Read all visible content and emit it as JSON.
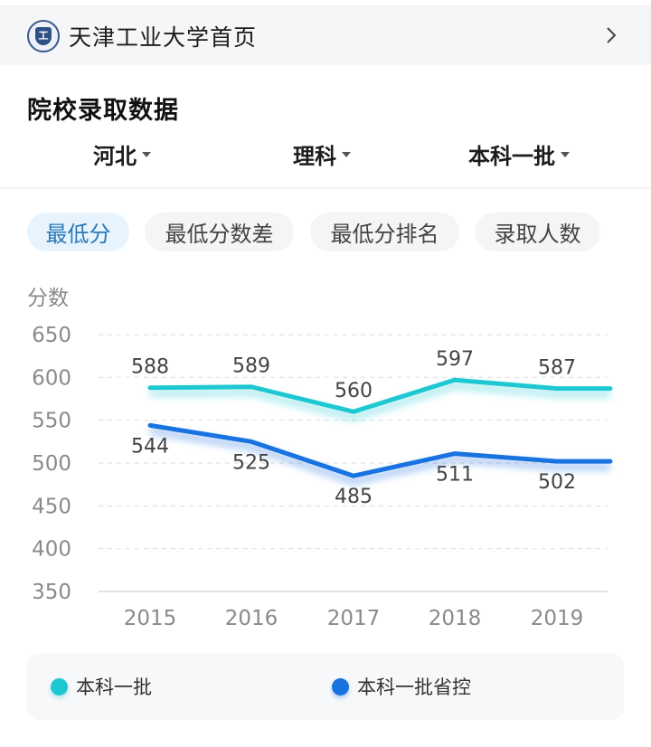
{
  "top_link": {
    "logo_icon": "university-seal-icon",
    "logo_glyph": "工",
    "title": "天津工业大学首页",
    "chevron_icon": "chevron-right-icon"
  },
  "section": {
    "title": "院校录取数据"
  },
  "filters": [
    {
      "label": "河北",
      "icon": "caret-down-icon"
    },
    {
      "label": "理科",
      "icon": "caret-down-icon"
    },
    {
      "label": "本科一批",
      "icon": "caret-down-icon"
    }
  ],
  "tabs": [
    {
      "label": "最低分",
      "active": true
    },
    {
      "label": "最低分数差",
      "active": false
    },
    {
      "label": "最低分排名",
      "active": false
    },
    {
      "label": "录取人数",
      "active": false
    }
  ],
  "colors": {
    "series_1": "#1ec8d2",
    "series_2": "#1873e0",
    "active_tab_text": "#2a78b8",
    "active_tab_bg": "#e8f4fd"
  },
  "chart_data": {
    "type": "line",
    "title": "",
    "xlabel": "",
    "ylabel": "分数",
    "categories": [
      "2015",
      "2016",
      "2017",
      "2018",
      "2019"
    ],
    "yticks": [
      650,
      600,
      550,
      500,
      450,
      400,
      350
    ],
    "ylim": [
      350,
      650
    ],
    "grid": true,
    "legend_position": "bottom",
    "series": [
      {
        "name": "本科一批",
        "values": [
          588,
          589,
          560,
          597,
          587
        ],
        "color": "#1ec8d2"
      },
      {
        "name": "本科一批省控",
        "values": [
          544,
          525,
          485,
          511,
          502
        ],
        "color": "#1873e0"
      }
    ]
  },
  "legend": [
    {
      "label": "本科一批",
      "color": "#1ec8d2"
    },
    {
      "label": "本科一批省控",
      "color": "#1873e0"
    }
  ]
}
